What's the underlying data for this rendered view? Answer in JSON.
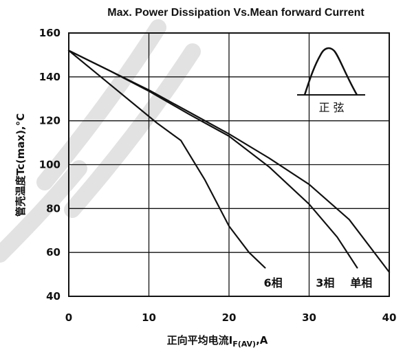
{
  "chart_data": {
    "type": "line",
    "title": "Max. Power Dissipation Vs.Mean forward Current",
    "xlabel": "正向平均电流I",
    "xlabel_sub": "F(AV)",
    "xlabel_suffix": ",A",
    "ylabel": "管壳温度Tc(max),°C",
    "xlim": [
      0,
      40
    ],
    "ylim": [
      40,
      160
    ],
    "xticks": [
      "0",
      "10",
      "20",
      "30",
      "40"
    ],
    "yticks": [
      "40",
      "60",
      "80",
      "100",
      "120",
      "140",
      "160"
    ],
    "grid": true,
    "series": [
      {
        "name": "6相",
        "x": [
          0,
          4,
          8,
          11,
          14,
          17,
          20,
          22.5,
          24.5
        ],
        "y": [
          152,
          140,
          128,
          119,
          111,
          93,
          72,
          60,
          53
        ]
      },
      {
        "name": "3相",
        "x": [
          0,
          5,
          10,
          15,
          17,
          20,
          25,
          30,
          33.5,
          36
        ],
        "y": [
          152,
          143,
          133.5,
          123,
          119,
          113,
          99,
          82,
          67,
          53
        ]
      },
      {
        "name": "单相",
        "x": [
          0,
          5,
          10,
          15,
          17.5,
          20,
          25,
          30,
          35,
          40
        ],
        "y": [
          152,
          143,
          134,
          124,
          119,
          114,
          103,
          91,
          75,
          51
        ]
      }
    ],
    "annotations": [
      {
        "text": "6相",
        "x": 25.5,
        "y": 46
      },
      {
        "text": "3相",
        "x": 32.0,
        "y": 46
      },
      {
        "text": "单相",
        "x": 36.5,
        "y": 46
      }
    ],
    "waveform_label": "正  弦"
  }
}
